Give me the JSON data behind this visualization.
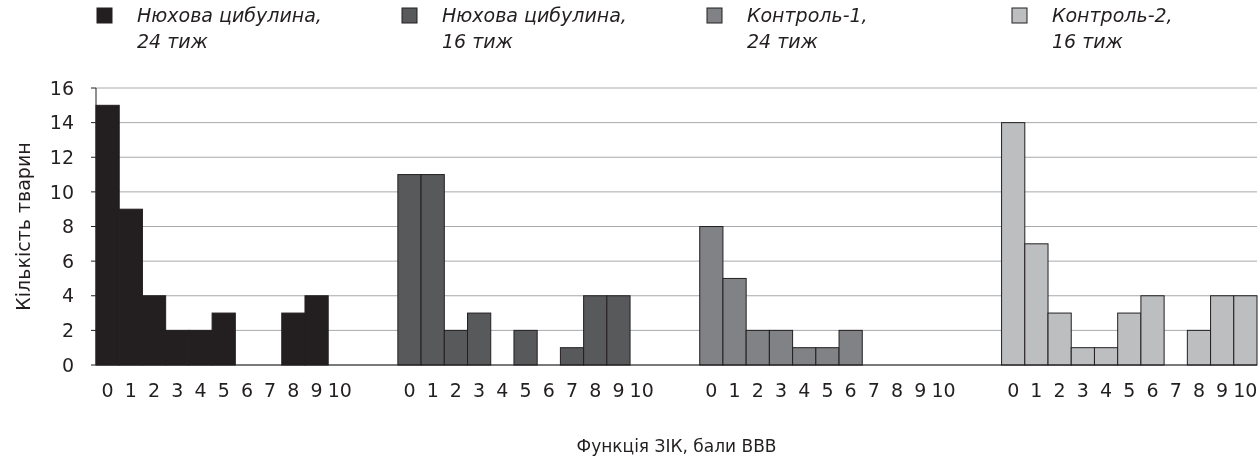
{
  "chart_data": {
    "type": "bar",
    "xlabel": "Функція ЗІК, бали ВВВ",
    "ylabel": "Кількість тварин",
    "categories": [
      "0",
      "1",
      "2",
      "3",
      "4",
      "5",
      "6",
      "7",
      "8",
      "9",
      "10",
      null,
      null,
      "0",
      "1",
      "2",
      "3",
      "4",
      "5",
      "6",
      "7",
      "8",
      "9",
      "10",
      null,
      null,
      "0",
      "1",
      "2",
      "3",
      "4",
      "5",
      "6",
      "7",
      "8",
      "9",
      "10",
      null,
      null,
      "0",
      "1",
      "2",
      "3",
      "4",
      "5",
      "6",
      "7",
      "8",
      "9",
      "10"
    ],
    "series": [
      {
        "name": "Нюхова цибулина, 24 тиж",
        "color": "#231f20",
        "values": [
          15,
          9,
          4,
          2,
          2,
          3,
          0,
          0,
          3,
          4,
          0,
          null,
          null,
          null,
          null,
          null,
          null,
          null,
          null,
          null,
          null,
          null,
          null,
          null,
          null,
          null,
          null,
          null,
          null,
          null,
          null,
          null,
          null,
          null,
          null,
          null,
          null,
          null,
          null,
          null,
          null,
          null,
          null,
          null,
          null,
          null,
          null,
          null,
          null,
          null
        ]
      },
      {
        "name": "Нюхова цибулина, 16 тиж",
        "color": "#58595b",
        "values": [
          null,
          null,
          null,
          null,
          null,
          null,
          null,
          null,
          null,
          null,
          null,
          null,
          null,
          11,
          11,
          2,
          3,
          0,
          2,
          0,
          1,
          4,
          4,
          0,
          null,
          null,
          null,
          null,
          null,
          null,
          null,
          null,
          null,
          null,
          null,
          null,
          null,
          null,
          null,
          null,
          null,
          null,
          null,
          null,
          null,
          null,
          null,
          null,
          null,
          null
        ]
      },
      {
        "name": "Контроль-1, 24 тиж",
        "color": "#808285",
        "values": [
          null,
          null,
          null,
          null,
          null,
          null,
          null,
          null,
          null,
          null,
          null,
          null,
          null,
          null,
          null,
          null,
          null,
          null,
          null,
          null,
          null,
          null,
          null,
          null,
          null,
          null,
          8,
          5,
          2,
          2,
          1,
          1,
          2,
          0,
          0,
          0,
          0,
          null,
          null,
          null,
          null,
          null,
          null,
          null,
          null,
          null,
          null,
          null,
          null,
          null
        ]
      },
      {
        "name": "Контроль-2, 16 тиж",
        "color": "#bcbec0",
        "values": [
          null,
          null,
          null,
          null,
          null,
          null,
          null,
          null,
          null,
          null,
          null,
          null,
          null,
          null,
          null,
          null,
          null,
          null,
          null,
          null,
          null,
          null,
          null,
          null,
          null,
          null,
          null,
          null,
          null,
          null,
          null,
          null,
          null,
          null,
          null,
          null,
          null,
          null,
          null,
          14,
          7,
          3,
          1,
          1,
          3,
          4,
          0,
          2,
          4,
          4
        ]
      }
    ],
    "ylim": [
      0,
      16
    ],
    "yticks": [
      0,
      2,
      4,
      6,
      8,
      10,
      12,
      14,
      16
    ],
    "grid": "y",
    "legend": "top"
  }
}
